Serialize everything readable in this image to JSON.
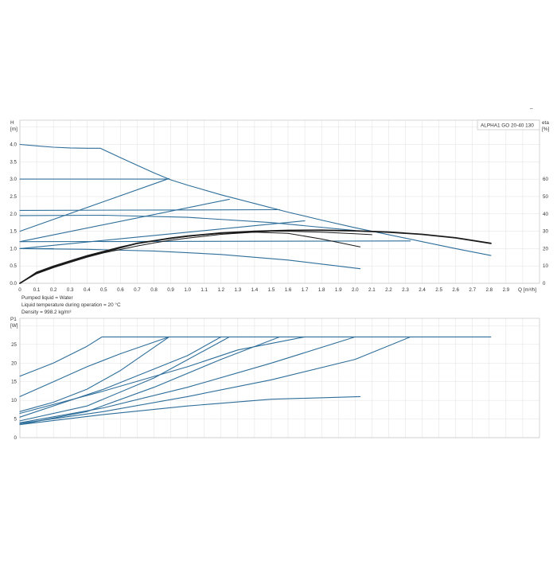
{
  "top_mark": "–",
  "model_label": "ALPHA1 GO 20-40 130",
  "fluid_notes": [
    "Pumped liquid = Water",
    "Liquid temperature during operation = 20 °C",
    "Density = 998.2 kg/m³"
  ],
  "colors": {
    "curve": "#2e6e9a",
    "efficiency": "#1a1a1a",
    "grid": "#e0e0e0",
    "frame": "#b9b9b9",
    "text": "#333333"
  },
  "chart_data": [
    {
      "type": "line",
      "name": "head",
      "ylabel": "H",
      "yunit": "[m]",
      "y2label": "eta",
      "y2unit": "[%]",
      "xunit": "Q [m³/h]",
      "xlim": [
        0,
        3.1
      ],
      "ylim": [
        0,
        4.7
      ],
      "y2lim": [
        0,
        94
      ],
      "grid": true,
      "xticks": [
        "0",
        "0.1",
        "0.2",
        "0.3",
        "0.4",
        "0.5",
        "0.6",
        "0.7",
        "0.8",
        "0.9",
        "1.0",
        "1.1",
        "1.2",
        "1.3",
        "1.4",
        "1.5",
        "1.6",
        "1.7",
        "1.8",
        "1.9",
        "2.0",
        "2.1",
        "2.2",
        "2.3",
        "2.4",
        "2.5",
        "2.6",
        "2.7",
        "2.8",
        "2.9"
      ],
      "yticks": [
        "0.0",
        "0.5",
        "1.0",
        "1.5",
        "2.0",
        "2.5",
        "3.0",
        "3.5",
        "4.0"
      ],
      "y2ticks": [
        "0",
        "10",
        "20",
        "30",
        "40",
        "50",
        "60"
      ],
      "head_curves": [
        {
          "x": [
            0,
            0.1,
            0.2,
            0.3,
            0.4,
            0.48,
            0.6,
            0.7,
            0.8,
            0.9,
            1.0,
            1.2,
            1.4,
            1.6,
            1.8,
            2.0,
            2.2,
            2.4,
            2.6,
            2.81
          ],
          "y": [
            4.0,
            3.96,
            3.92,
            3.9,
            3.89,
            3.89,
            3.62,
            3.4,
            3.18,
            2.98,
            2.83,
            2.55,
            2.3,
            2.05,
            1.82,
            1.6,
            1.4,
            1.2,
            1.0,
            0.8
          ]
        },
        {
          "x": [
            0,
            0.89
          ],
          "y": [
            3.0,
            3.0
          ]
        },
        {
          "x": [
            0,
            0.89
          ],
          "y": [
            1.5,
            3.02
          ]
        },
        {
          "x": [
            0,
            1.25
          ],
          "y": [
            1.2,
            2.42
          ]
        },
        {
          "x": [
            0,
            1.55
          ],
          "y": [
            2.1,
            2.12
          ]
        },
        {
          "x": [
            0,
            0.5,
            1.0,
            1.5,
            2.0
          ],
          "y": [
            1.95,
            1.96,
            1.9,
            1.75,
            1.52
          ]
        },
        {
          "x": [
            0,
            1.7
          ],
          "y": [
            1.0,
            1.8
          ]
        },
        {
          "x": [
            0,
            2.33
          ],
          "y": [
            1.2,
            1.22
          ]
        },
        {
          "x": [
            0,
            0.2
          ],
          "y": [
            1.0,
            1.0
          ]
        },
        {
          "x": [
            0,
            0.4,
            0.8,
            1.2,
            1.6,
            2.03
          ],
          "y": [
            1.0,
            0.98,
            0.93,
            0.83,
            0.67,
            0.42
          ]
        }
      ],
      "efficiency_curves": [
        {
          "x": [
            0,
            0.1,
            0.2,
            0.3,
            0.4,
            0.5,
            0.6,
            0.7,
            0.8,
            0.9,
            1.0,
            1.2,
            1.4,
            1.6,
            1.8,
            2.0,
            2.2,
            2.4,
            2.6,
            2.81
          ],
          "y": [
            0,
            6,
            9.5,
            12.5,
            15.5,
            18,
            20.5,
            23,
            24.5,
            26,
            27.2,
            29,
            30,
            30.5,
            30.6,
            30.2,
            29.5,
            28.2,
            26.2,
            23
          ]
        },
        {
          "x": [
            0,
            0.1,
            0.2,
            0.3,
            0.4,
            0.5,
            0.6,
            0.7,
            0.8,
            0.9,
            1.0,
            1.2,
            1.4,
            1.6,
            1.8,
            2.03
          ],
          "y": [
            0,
            6.5,
            10,
            13,
            16,
            18.5,
            21,
            23,
            24.5,
            25.8,
            27,
            28.8,
            29.5,
            28.8,
            25.5,
            21
          ]
        },
        {
          "x": [
            0,
            0.1,
            0.2,
            0.3,
            0.4,
            0.5,
            0.6,
            0.7,
            0.8,
            0.9,
            1.0,
            1.2,
            1.4,
            1.5,
            1.6,
            1.8,
            2.0,
            2.1
          ],
          "y": [
            0,
            5.5,
            9,
            12,
            15,
            17.5,
            19.5,
            21.5,
            23.3,
            24.8,
            26,
            28.2,
            29.5,
            30,
            30,
            29.5,
            28.5,
            28
          ]
        }
      ]
    },
    {
      "type": "line",
      "name": "power",
      "ylabel": "P1",
      "yunit": "[W]",
      "xlim": [
        0,
        3.1
      ],
      "ylim": [
        0,
        32
      ],
      "grid": true,
      "yticks": [
        "0",
        "5",
        "10",
        "15",
        "20",
        "25"
      ],
      "power_curves": [
        {
          "x": [
            0,
            0.2,
            0.4,
            0.49,
            2.81
          ],
          "y": [
            16.5,
            20,
            24.5,
            27,
            27
          ]
        },
        {
          "x": [
            0,
            0.2,
            0.4,
            0.6,
            0.89
          ],
          "y": [
            11,
            15,
            19,
            22.5,
            27
          ]
        },
        {
          "x": [
            0,
            0.2,
            0.4,
            0.6,
            0.89
          ],
          "y": [
            7,
            9.5,
            13,
            18,
            27
          ]
        },
        {
          "x": [
            0,
            0.4,
            0.8,
            1.25
          ],
          "y": [
            4.5,
            8.5,
            16,
            27
          ]
        },
        {
          "x": [
            0,
            0.4,
            0.8,
            1.2,
            1.55
          ],
          "y": [
            3.5,
            7,
            13.5,
            21,
            27
          ]
        },
        {
          "x": [
            0,
            0.5,
            1.0,
            1.5,
            2.0
          ],
          "y": [
            4,
            8,
            13.5,
            20,
            27
          ]
        },
        {
          "x": [
            0,
            0.5,
            1.0,
            1.3,
            1.7
          ],
          "y": [
            6.5,
            12.5,
            19,
            23.5,
            27
          ]
        },
        {
          "x": [
            0,
            0.5,
            1.0,
            1.5,
            2.0,
            2.33
          ],
          "y": [
            3.8,
            7,
            11,
            15.5,
            21,
            27
          ]
        },
        {
          "x": [
            0,
            0.5,
            1.0,
            1.2
          ],
          "y": [
            5.5,
            13,
            22,
            27
          ]
        },
        {
          "x": [
            0,
            0.5,
            1.0,
            1.5,
            2.03
          ],
          "y": [
            3.5,
            6.2,
            8.5,
            10.3,
            11
          ]
        }
      ]
    }
  ]
}
